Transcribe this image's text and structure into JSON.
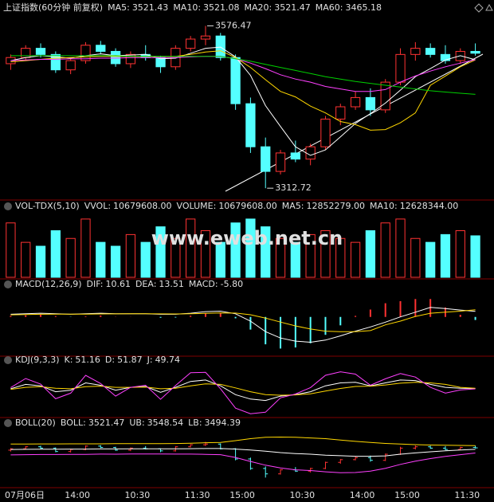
{
  "chart_data": [
    {
      "type": "candlestick",
      "title": "上证指数(60分钟 前复权)",
      "categories": [
        "07月06日",
        null,
        null,
        null,
        "14:00",
        null,
        null,
        null,
        "10:30",
        null,
        null,
        null,
        "11:30",
        null,
        null,
        "15:00",
        null,
        null,
        null,
        "10:30",
        null,
        null,
        null,
        "14:00",
        null,
        null,
        "15:00",
        null,
        null,
        null,
        "11:30",
        null
      ],
      "candles": [
        [
          3515,
          3530,
          3505,
          3525
        ],
        [
          3525,
          3545,
          3520,
          3540
        ],
        [
          3540,
          3548,
          3525,
          3530
        ],
        [
          3530,
          3535,
          3500,
          3505
        ],
        [
          3505,
          3525,
          3498,
          3520
        ],
        [
          3520,
          3550,
          3515,
          3545
        ],
        [
          3545,
          3552,
          3530,
          3535
        ],
        [
          3535,
          3540,
          3510,
          3515
        ],
        [
          3515,
          3535,
          3508,
          3530
        ],
        [
          3530,
          3545,
          3520,
          3525
        ],
        [
          3525,
          3528,
          3500,
          3510
        ],
        [
          3510,
          3545,
          3505,
          3540
        ],
        [
          3540,
          3560,
          3535,
          3555
        ],
        [
          3555,
          3576.47,
          3545,
          3560
        ],
        [
          3560,
          3565,
          3520,
          3525
        ],
        [
          3525,
          3530,
          3440,
          3450
        ],
        [
          3450,
          3460,
          3370,
          3380
        ],
        [
          3380,
          3395,
          3312.72,
          3340
        ],
        [
          3340,
          3375,
          3335,
          3370
        ],
        [
          3370,
          3390,
          3355,
          3360
        ],
        [
          3360,
          3385,
          3350,
          3380
        ],
        [
          3380,
          3430,
          3375,
          3425
        ],
        [
          3425,
          3450,
          3415,
          3445
        ],
        [
          3445,
          3470,
          3440,
          3460
        ],
        [
          3460,
          3475,
          3430,
          3440
        ],
        [
          3440,
          3490,
          3435,
          3485
        ],
        [
          3485,
          3540,
          3480,
          3530
        ],
        [
          3530,
          3550,
          3520,
          3540
        ],
        [
          3540,
          3548,
          3525,
          3530
        ],
        [
          3530,
          3545,
          3515,
          3520
        ],
        [
          3520,
          3540,
          3515,
          3535
        ],
        [
          3535,
          3548,
          3528,
          3532
        ]
      ],
      "up_color": "#ff3232",
      "down_color": "#54ffff",
      "ylim": [
        3300,
        3590
      ],
      "series": [
        {
          "name": "MA5:",
          "color": "#ffffff",
          "values": [
            3520,
            3525,
            3528,
            3526,
            3524,
            3528,
            3531,
            3528,
            3529,
            3530,
            3523,
            3524,
            3532,
            3540,
            3542,
            3526,
            3496,
            3447,
            3413,
            3380,
            3366,
            3375,
            3396,
            3418,
            3434,
            3451,
            3472,
            3494,
            3507,
            3521,
            3528,
            3521.43
          ]
        },
        {
          "name": "MA10:",
          "color": "#ffd700",
          "values": [
            3518,
            3520,
            3522,
            3524,
            3525,
            3526,
            3527,
            3527,
            3527,
            3527,
            3527,
            3527,
            3530,
            3534,
            3536,
            3525,
            3509,
            3489,
            3470,
            3461,
            3446,
            3435,
            3421,
            3416,
            3407,
            3408,
            3419,
            3435,
            3480,
            3495,
            3510,
            3521.08
          ]
        },
        {
          "name": "MA20:",
          "color": "#ff40ff",
          "values": [
            3520,
            3521,
            3522,
            3522,
            3523,
            3523,
            3524,
            3524,
            3525,
            3525,
            3525,
            3525,
            3526,
            3527,
            3527,
            3523,
            3516,
            3507,
            3497,
            3490,
            3485,
            3478,
            3474,
            3470,
            3470,
            3473,
            3485,
            3495,
            3503,
            3510,
            3516,
            3521.47
          ]
        },
        {
          "name": "MA60:",
          "color": "#00d000",
          "values": [
            3528,
            3528,
            3528,
            3528,
            3528,
            3528,
            3528,
            3528,
            3527,
            3527,
            3527,
            3527,
            3527,
            3527,
            3527,
            3523,
            3519,
            3514,
            3509,
            3504,
            3499,
            3494,
            3490,
            3486,
            3483,
            3480,
            3477,
            3474,
            3471,
            3469,
            3467,
            3465.18
          ]
        }
      ]
    },
    {
      "type": "bar",
      "title": "VOL-TDX(5,10)",
      "watermark": "www.eweb.net.cn",
      "legend": [
        {
          "name": "VVOL:",
          "color": "#ffffff",
          "value": 10679608,
          "label": "10679608.00"
        },
        {
          "name": "VOLUME:",
          "color": "#ffd700",
          "value": 10679608,
          "label": "10679608.00"
        },
        {
          "name": "MA5:",
          "color": "#ffd700",
          "value": 12852279,
          "label": "12852279.00"
        },
        {
          "name": "MA10:",
          "color": "#ff40ff",
          "value": 12628344,
          "label": "12628344.00"
        }
      ],
      "values": [
        14000000,
        9000000,
        8000000,
        12000000,
        10000000,
        15000000,
        9000000,
        8000000,
        11000000,
        9000000,
        13000000,
        10000000,
        15000000,
        12000000,
        9000000,
        14000000,
        15000000,
        13000000,
        10000000,
        9000000,
        11000000,
        12000000,
        10000000,
        9000000,
        12000000,
        14000000,
        15000000,
        10000000,
        9000000,
        11000000,
        12000000,
        10679608
      ],
      "ylim": [
        0,
        16000000
      ]
    },
    {
      "type": "macd",
      "title": "MACD(12,26,9)",
      "series": [
        {
          "name": "DIF:",
          "color": "#ffffff",
          "values": [
            5,
            6,
            7,
            6,
            5,
            6,
            7,
            6,
            6,
            6,
            5,
            5,
            7,
            10,
            11,
            6,
            -8,
            -28,
            -40,
            -46,
            -48,
            -44,
            -36,
            -27,
            -19,
            -10,
            0,
            9,
            18,
            16,
            13,
            10.61
          ]
        },
        {
          "name": "DEA:",
          "color": "#ffd700",
          "values": [
            4,
            4.5,
            5,
            5.2,
            5.2,
            5.4,
            5.7,
            5.8,
            5.9,
            6,
            5.8,
            5.6,
            5.9,
            6.7,
            7.6,
            7.3,
            4.2,
            -2.2,
            -9.8,
            -17,
            -23,
            -27,
            -28,
            -28,
            -26,
            -15,
            -8,
            1,
            7,
            9,
            11,
            13.51
          ]
        }
      ],
      "histogram": {
        "name": "MACD:",
        "color": "#ff40ff",
        "values": [
          2,
          3,
          4,
          1.6,
          -0.4,
          1.2,
          2.6,
          0.4,
          0.2,
          0,
          -1.6,
          -1.2,
          2.2,
          6.6,
          6.8,
          -2.6,
          -24,
          -52,
          -60,
          -58,
          -50,
          -34,
          -16,
          2,
          14,
          26,
          30,
          34,
          34,
          18,
          4,
          -5.8
        ],
        "last_label": "-5.80"
      },
      "ylim": [
        -70,
        45
      ]
    },
    {
      "type": "line",
      "title": "KDJ(9,3,3)",
      "series": [
        {
          "name": "K:",
          "color": "#ffffff",
          "values": [
            50,
            65,
            60,
            40,
            45,
            70,
            62,
            45,
            55,
            58,
            38,
            55,
            75,
            80,
            60,
            30,
            15,
            10,
            25,
            30,
            40,
            60,
            70,
            72,
            60,
            70,
            80,
            78,
            65,
            55,
            52,
            51.16
          ]
        },
        {
          "name": "D:",
          "color": "#ffd700",
          "values": [
            48,
            55,
            57,
            52,
            50,
            57,
            59,
            55,
            55,
            56,
            50,
            52,
            60,
            67,
            65,
            53,
            40,
            30,
            28,
            29,
            33,
            42,
            51,
            58,
            59,
            63,
            69,
            72,
            70,
            65,
            55,
            51.87
          ]
        },
        {
          "name": "J:",
          "color": "#ff40ff",
          "values": [
            54,
            85,
            66,
            16,
            35,
            96,
            68,
            25,
            55,
            62,
            14,
            61,
            105,
            106,
            50,
            -16,
            -35,
            -30,
            19,
            32,
            54,
            96,
            108,
            100,
            62,
            84,
            102,
            90,
            55,
            35,
            46,
            49.74
          ]
        }
      ],
      "ylim": [
        -40,
        115
      ]
    },
    {
      "type": "ohlc",
      "title": "BOLL(20)",
      "series": [
        {
          "name": "BOLL:",
          "color": "#ffffff",
          "values": [
            3520,
            3521,
            3522,
            3522,
            3523,
            3523,
            3524,
            3524,
            3525,
            3525,
            3525,
            3525,
            3526,
            3527,
            3527,
            3523,
            3516,
            3507,
            3497,
            3490,
            3485,
            3478,
            3474,
            3470,
            3470,
            3473,
            3485,
            3495,
            3503,
            3510,
            3516,
            3521.47
          ]
        },
        {
          "name": "UB:",
          "color": "#ffd700",
          "values": [
            3560,
            3560,
            3561,
            3561,
            3562,
            3562,
            3562,
            3563,
            3563,
            3563,
            3563,
            3564,
            3566,
            3570,
            3572,
            3585,
            3600,
            3610,
            3612,
            3610,
            3605,
            3600,
            3590,
            3580,
            3572,
            3565,
            3560,
            3556,
            3553,
            3551,
            3550,
            3548.54
          ]
        },
        {
          "name": "LB:",
          "color": "#ff40ff",
          "values": [
            3480,
            3482,
            3483,
            3483,
            3484,
            3484,
            3486,
            3485,
            3487,
            3487,
            3487,
            3486,
            3486,
            3484,
            3482,
            3461,
            3432,
            3404,
            3384,
            3370,
            3365,
            3355,
            3348,
            3350,
            3360,
            3381,
            3410,
            3434,
            3453,
            3469,
            3482,
            3494.39
          ]
        }
      ],
      "ylim": [
        3250,
        3650
      ]
    }
  ]
}
